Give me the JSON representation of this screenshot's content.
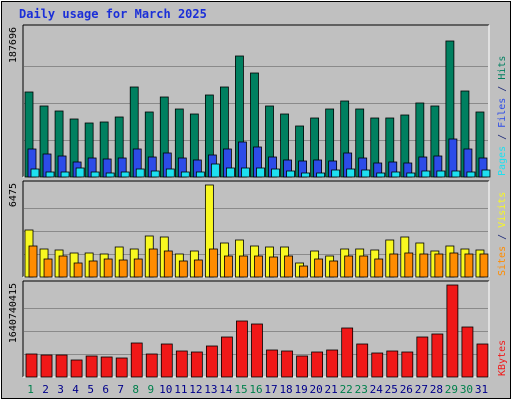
{
  "chart_data": {
    "title": "Daily usage for March 2025",
    "type": "bar",
    "categories": [
      "1",
      "2",
      "3",
      "4",
      "5",
      "6",
      "7",
      "8",
      "9",
      "10",
      "11",
      "12",
      "13",
      "14",
      "15",
      "16",
      "17",
      "18",
      "19",
      "20",
      "21",
      "22",
      "23",
      "24",
      "25",
      "26",
      "27",
      "28",
      "29",
      "30",
      "31"
    ],
    "weekend_days": [
      "1",
      "8",
      "9",
      "15",
      "16",
      "22",
      "23",
      "29",
      "30"
    ],
    "panels": [
      {
        "name": "pages-files-hits",
        "ymax_label": "187696",
        "ymax": 187696,
        "series": [
          {
            "name": "Hits",
            "color": "#008060",
            "values": [
              108000,
              90000,
              84000,
              74000,
              68000,
              70000,
              76000,
              114000,
              82000,
              102000,
              86000,
              80000,
              104000,
              114000,
              154000,
              132000,
              90000,
              80000,
              65000,
              75000,
              86000,
              97000,
              86000,
              75000,
              75000,
              78000,
              94000,
              90000,
              173000,
              109000,
              82000
            ]
          },
          {
            "name": "Files",
            "color": "#2c4ce8",
            "values": [
              36000,
              29000,
              26000,
              19000,
              24000,
              23000,
              24000,
              35000,
              25000,
              30000,
              24000,
              22000,
              28000,
              35000,
              44000,
              38000,
              25000,
              22000,
              20000,
              21000,
              20000,
              30000,
              24000,
              18000,
              19000,
              18000,
              25000,
              26000,
              48000,
              35000,
              24000
            ]
          },
          {
            "name": "Pages",
            "color": "#1de0f0",
            "values": [
              10000,
              6200,
              5800,
              11000,
              6500,
              5200,
              6400,
              10000,
              7000,
              9800,
              6800,
              6300,
              17000,
              11000,
              11000,
              12000,
              10000,
              8000,
              4800,
              5600,
              8400,
              10000,
              8800,
              5400,
              5800,
              5400,
              8200,
              7400,
              8200,
              6800,
              8600
            ]
          }
        ]
      },
      {
        "name": "visits-sites",
        "ymax_label": "6475",
        "ymax": 6475,
        "series": [
          {
            "name": "Visits",
            "color": "#f8f820",
            "values": [
              3300,
              2000,
              1900,
              1700,
              1700,
              1600,
              2100,
              2000,
              2900,
              2800,
              1600,
              1800,
              6475,
              2400,
              2600,
              2200,
              2100,
              2100,
              1000,
              1800,
              1500,
              2000,
              2000,
              1900,
              2600,
              2800,
              2400,
              1800,
              2200,
              2000,
              1900
            ]
          },
          {
            "name": "Sites",
            "color": "#ff8c00",
            "values": [
              2200,
              1300,
              1500,
              1000,
              1100,
              1300,
              1200,
              1300,
              2000,
              1800,
              1100,
              1200,
              2000,
              1500,
              1500,
              1500,
              1400,
              1500,
              800,
              1300,
              1100,
              1500,
              1500,
              1300,
              1600,
              1700,
              1600,
              1600,
              1700,
              1600,
              1600
            ]
          }
        ]
      },
      {
        "name": "kbytes",
        "ymax_label": "1640740415",
        "ymax": 1640740415,
        "series": [
          {
            "name": "KBytes",
            "color": "#f01818",
            "values": [
              410000000,
              390000000,
              400000000,
              310000000,
              380000000,
              360000000,
              340000000,
              610000000,
              410000000,
              580000000,
              460000000,
              440000000,
              560000000,
              720000000,
              1000000000,
              940000000,
              490000000,
              460000000,
              370000000,
              440000000,
              490000000,
              870000000,
              580000000,
              430000000,
              460000000,
              450000000,
              720000000,
              770000000,
              1640740415,
              900000000,
              590000000
            ]
          }
        ]
      }
    ],
    "legend": {
      "top": [
        {
          "text": "Pages",
          "color": "#1de0f0"
        },
        {
          "text": " / ",
          "color": "#1e2a78"
        },
        {
          "text": "Files",
          "color": "#2c4ce8"
        },
        {
          "text": " / ",
          "color": "#1e2a78"
        },
        {
          "text": "Hits",
          "color": "#008060"
        }
      ],
      "middle": [
        {
          "text": "Sites",
          "color": "#ff8c00"
        },
        {
          "text": " / ",
          "color": "#1e2a78"
        },
        {
          "text": "Visits",
          "color": "#f8f820"
        }
      ],
      "bottom": [
        {
          "text": "KBytes",
          "color": "#f01818"
        }
      ]
    },
    "colors": {
      "background": "#c0c0c0",
      "plot_background": "#c0c0c0",
      "weekday_label": "#00008b",
      "weekend_label": "#00804c",
      "title": "#1b2fd8"
    }
  }
}
